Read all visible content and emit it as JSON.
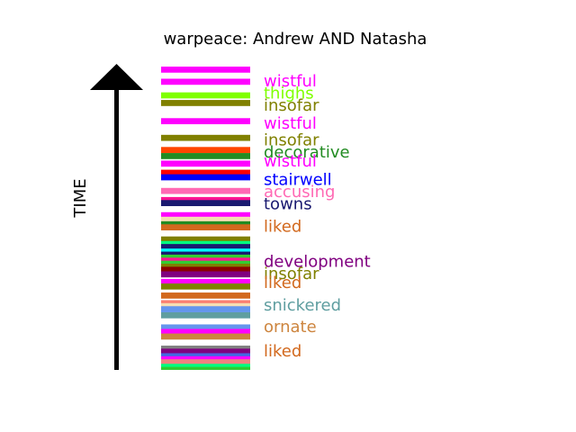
{
  "chart_data": {
    "type": "bar",
    "title": "warpeace: Andrew AND Natasha",
    "ylabel": "TIME",
    "ylim": [
      0,
      1
    ],
    "stripe_unit": 0.02,
    "stripes": [
      {
        "start": 0.0,
        "color": "#ff00ff"
      },
      {
        "start": 0.04,
        "color": "#ff00ff"
      },
      {
        "start": 0.085,
        "color": "#7fff00"
      },
      {
        "start": 0.11,
        "color": "#808000"
      },
      {
        "start": 0.17,
        "color": "#ff00ff"
      },
      {
        "start": 0.225,
        "color": "#808000"
      },
      {
        "start": 0.265,
        "color": "#ff4500"
      },
      {
        "start": 0.285,
        "color": "#228b22"
      },
      {
        "start": 0.31,
        "color": "#ff00ff"
      },
      {
        "start": 0.34,
        "color": "#ff0000"
      },
      {
        "start": 0.355,
        "color": "#0000ff"
      },
      {
        "start": 0.4,
        "color": "#ff69b4"
      },
      {
        "start": 0.43,
        "color": "#ff1493"
      },
      {
        "start": 0.44,
        "color": "#191970"
      },
      {
        "start": 0.48,
        "color": "#ff00ff"
      },
      {
        "start": 0.495,
        "color": "#f5deb3"
      },
      {
        "start": 0.51,
        "color": "#228b22"
      },
      {
        "start": 0.52,
        "color": "#d2691e"
      },
      {
        "start": 0.56,
        "color": "#808000"
      },
      {
        "start": 0.575,
        "color": "#00ff7f"
      },
      {
        "start": 0.585,
        "color": "#191970"
      },
      {
        "start": 0.6,
        "color": "#00ffff"
      },
      {
        "start": 0.61,
        "color": "#191970"
      },
      {
        "start": 0.62,
        "color": "#32cd32"
      },
      {
        "start": 0.63,
        "color": "#ff1493"
      },
      {
        "start": 0.64,
        "color": "#32cd32"
      },
      {
        "start": 0.65,
        "color": "#808000"
      },
      {
        "start": 0.66,
        "color": "#8b0000"
      },
      {
        "start": 0.675,
        "color": "#800080"
      },
      {
        "start": 0.7,
        "color": "#ff00ff"
      },
      {
        "start": 0.715,
        "color": "#808000"
      },
      {
        "start": 0.745,
        "color": "#d2691e"
      },
      {
        "start": 0.77,
        "color": "#fa8072"
      },
      {
        "start": 0.78,
        "color": "#f5deb3"
      },
      {
        "start": 0.79,
        "color": "#6495ed"
      },
      {
        "start": 0.81,
        "color": "#5f9ea0"
      },
      {
        "start": 0.85,
        "color": "#6495ed"
      },
      {
        "start": 0.865,
        "color": "#ff00ff"
      },
      {
        "start": 0.88,
        "color": "#cd853f"
      },
      {
        "start": 0.92,
        "color": "#808080"
      },
      {
        "start": 0.93,
        "color": "#800080"
      },
      {
        "start": 0.945,
        "color": "#4169e1"
      },
      {
        "start": 0.955,
        "color": "#ff00ff"
      },
      {
        "start": 0.965,
        "color": "#f08080"
      },
      {
        "start": 0.98,
        "color": "#00ff7f"
      },
      {
        "start": 0.99,
        "color": "#32cd32"
      }
    ],
    "labels": [
      {
        "text": "wistful",
        "pos": 0.05,
        "color": "#ff00ff"
      },
      {
        "text": "thighs",
        "pos": 0.09,
        "color": "#7fff00"
      },
      {
        "text": "insofar",
        "pos": 0.13,
        "color": "#808000"
      },
      {
        "text": "wistful",
        "pos": 0.19,
        "color": "#ff00ff"
      },
      {
        "text": "insofar",
        "pos": 0.245,
        "color": "#808000"
      },
      {
        "text": "decorative",
        "pos": 0.285,
        "color": "#228b22"
      },
      {
        "text": "wistful",
        "pos": 0.315,
        "color": "#ff00ff"
      },
      {
        "text": "stairwell",
        "pos": 0.375,
        "color": "#0000ff"
      },
      {
        "text": "accusing",
        "pos": 0.415,
        "color": "#ff69b4"
      },
      {
        "text": "towns",
        "pos": 0.455,
        "color": "#191970"
      },
      {
        "text": "liked",
        "pos": 0.53,
        "color": "#d2691e"
      },
      {
        "text": "development",
        "pos": 0.645,
        "color": "#800080"
      },
      {
        "text": "insofar",
        "pos": 0.685,
        "color": "#808000"
      },
      {
        "text": "liked",
        "pos": 0.715,
        "color": "#d2691e"
      },
      {
        "text": "snickered",
        "pos": 0.79,
        "color": "#5f9ea0"
      },
      {
        "text": "ornate",
        "pos": 0.86,
        "color": "#cd853f"
      },
      {
        "text": "liked",
        "pos": 0.94,
        "color": "#d2691e"
      }
    ]
  }
}
